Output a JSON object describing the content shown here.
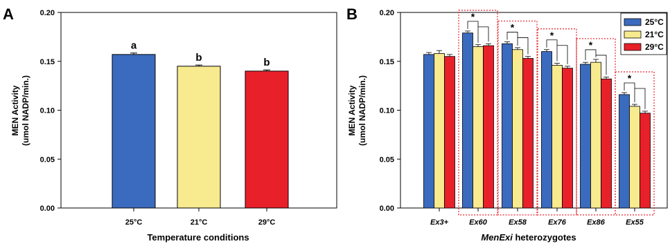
{
  "chart_data": [
    {
      "panel": "A",
      "type": "bar",
      "ylabel_line1": "MEN Activity",
      "ylabel_line2": "(umol NADP/min.)",
      "xlabel": "Temperature conditions",
      "ylim": [
        0,
        0.2
      ],
      "yticks": [
        "0.00",
        "0.05",
        "0.10",
        "0.15",
        "0.20"
      ],
      "categories": [
        "25°C",
        "21°C",
        "29°C"
      ],
      "values": [
        0.157,
        0.145,
        0.14
      ],
      "errors": [
        0.0015,
        0.0012,
        0.0012
      ],
      "labels": [
        "a",
        "b",
        "b"
      ],
      "colors": [
        "#3b6bbf",
        "#f7ea8f",
        "#e8202a"
      ]
    },
    {
      "panel": "B",
      "type": "bar",
      "ylabel_line1": "MEN Activity",
      "ylabel_line2": "(umol NADP/min.)",
      "xlabel_italic": "MenExi",
      "xlabel_rest": " heterozygotes",
      "ylim": [
        0,
        0.2
      ],
      "yticks": [
        "0.00",
        "0.05",
        "0.10",
        "0.15",
        "0.20"
      ],
      "categories": [
        "Ex3+",
        "Ex60",
        "Ex58",
        "Ex76",
        "Ex86",
        "Ex55"
      ],
      "series": [
        {
          "name": "25°C",
          "color": "#3b6bbf",
          "values": [
            0.157,
            0.179,
            0.168,
            0.16,
            0.147,
            0.116
          ],
          "errors": [
            0.002,
            0.002,
            0.002,
            0.002,
            0.002,
            0.002
          ]
        },
        {
          "name": "21°C",
          "color": "#f7ea8f",
          "values": [
            0.158,
            0.165,
            0.162,
            0.146,
            0.149,
            0.104
          ],
          "errors": [
            0.003,
            0.002,
            0.002,
            0.002,
            0.003,
            0.002
          ]
        },
        {
          "name": "29°C",
          "color": "#e8202a",
          "values": [
            0.155,
            0.166,
            0.153,
            0.143,
            0.132,
            0.097
          ],
          "errors": [
            0.002,
            0.002,
            0.002,
            0.002,
            0.002,
            0.002
          ]
        }
      ],
      "significance": [
        "",
        "*",
        "*",
        "*",
        "*",
        "*"
      ],
      "boxed_groups": [
        1,
        2,
        3,
        4,
        5
      ],
      "legend_position": "top-right"
    }
  ],
  "panel_labels": [
    "A",
    "B"
  ]
}
